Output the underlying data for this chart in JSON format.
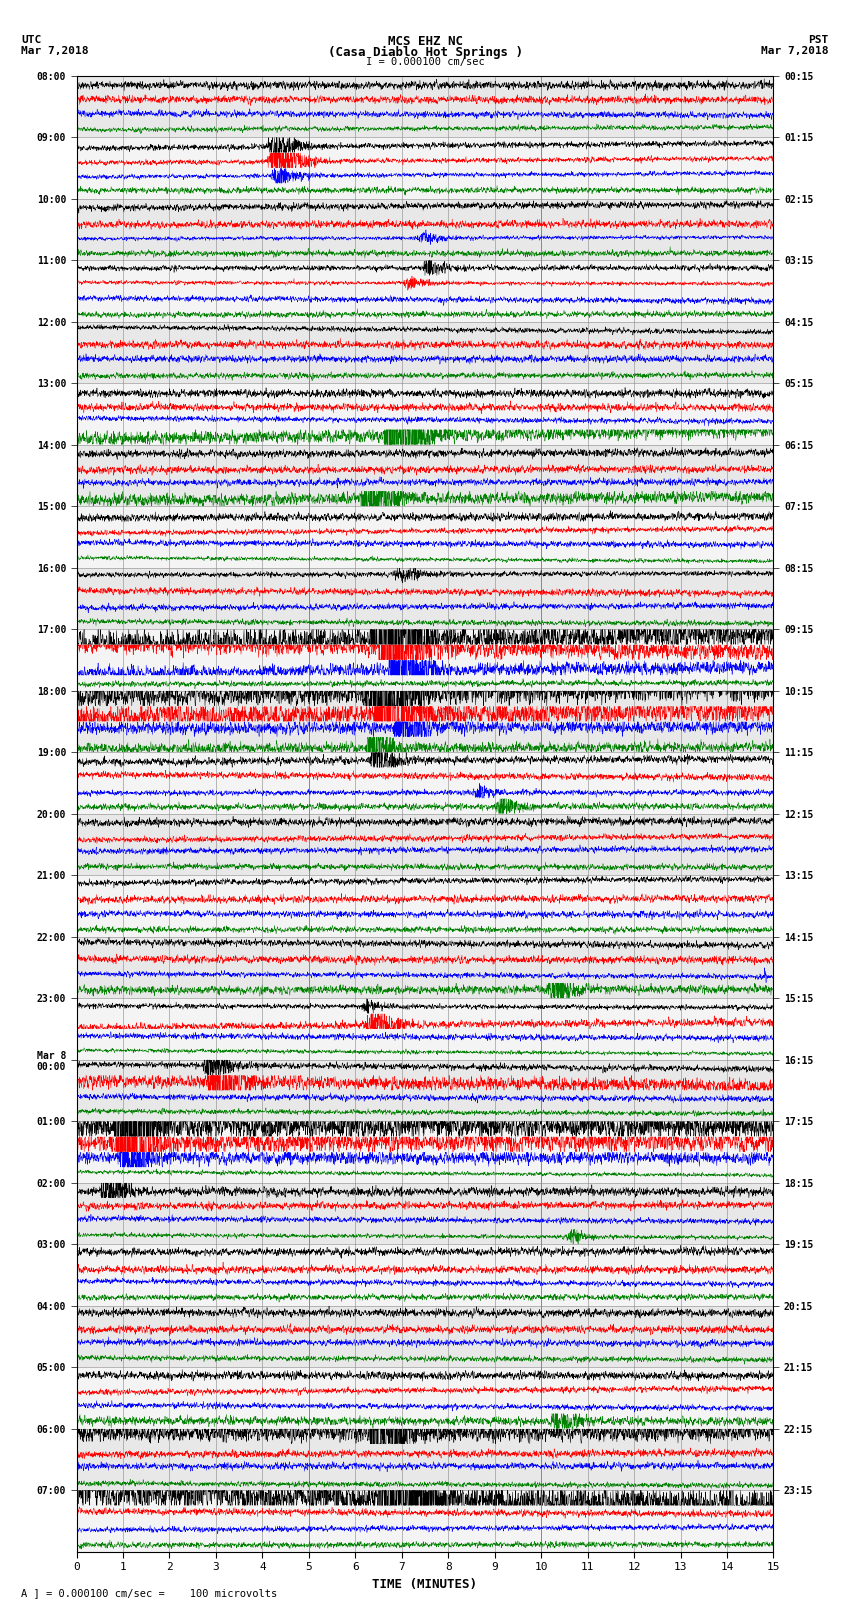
{
  "title_line1": "MCS EHZ NC",
  "title_line2": "(Casa Diablo Hot Springs )",
  "scale_label": "I = 0.000100 cm/sec",
  "footer_label": "A ] = 0.000100 cm/sec =    100 microvolts",
  "utc_label": "UTC",
  "utc_date": "Mar 7,2018",
  "pst_label": "PST",
  "pst_date": "Mar 7,2018",
  "xlabel": "TIME (MINUTES)",
  "colors": [
    "black",
    "red",
    "blue",
    "green"
  ],
  "bg_color": "#ffffff",
  "num_rows": 24,
  "minutes_per_row": 15,
  "grid_color": "#aaaaaa",
  "left_labels": [
    "08:00",
    "09:00",
    "10:00",
    "11:00",
    "12:00",
    "13:00",
    "14:00",
    "15:00",
    "16:00",
    "17:00",
    "18:00",
    "19:00",
    "20:00",
    "21:00",
    "22:00",
    "23:00",
    "Mar 8\n00:00",
    "01:00",
    "02:00",
    "03:00",
    "04:00",
    "05:00",
    "06:00",
    "07:00"
  ],
  "right_labels": [
    "00:15",
    "01:15",
    "02:15",
    "03:15",
    "04:15",
    "05:15",
    "06:15",
    "07:15",
    "08:15",
    "09:15",
    "10:15",
    "11:15",
    "12:15",
    "13:15",
    "14:15",
    "15:15",
    "16:15",
    "17:15",
    "18:15",
    "19:15",
    "20:15",
    "21:15",
    "22:15",
    "23:15"
  ],
  "events": {
    "1_0": [
      4.1,
      6,
      0.04
    ],
    "1_1": [
      4.1,
      12,
      0.035
    ],
    "1_2": [
      4.15,
      5,
      0.03
    ],
    "2_2": [
      7.3,
      3,
      0.02
    ],
    "3_0": [
      7.4,
      4,
      0.025
    ],
    "3_1": [
      7.0,
      3,
      0.02
    ],
    "5_3": [
      6.6,
      18,
      0.08
    ],
    "6_3": [
      6.1,
      10,
      0.06
    ],
    "8_0": [
      6.8,
      4,
      0.025
    ],
    "9_0": [
      6.3,
      35,
      0.15
    ],
    "9_1": [
      6.5,
      20,
      0.1
    ],
    "9_2": [
      6.7,
      12,
      0.07
    ],
    "10_0": [
      6.2,
      15,
      0.12
    ],
    "10_1": [
      6.4,
      20,
      0.12
    ],
    "10_2": [
      6.8,
      8,
      0.06
    ],
    "10_3": [
      6.2,
      8,
      0.05
    ],
    "11_0": [
      6.3,
      6,
      0.04
    ],
    "11_2": [
      8.5,
      3,
      0.025
    ],
    "11_3": [
      9.0,
      4,
      0.03
    ],
    "14_3": [
      10.1,
      5,
      0.04
    ],
    "14_2": [
      14.8,
      4,
      0.03
    ],
    "15_1": [
      6.2,
      6,
      0.05
    ],
    "15_0": [
      6.1,
      3,
      0.025
    ],
    "16_1": [
      2.8,
      10,
      0.07
    ],
    "16_0": [
      2.7,
      5,
      0.04
    ],
    "17_0": [
      0.8,
      20,
      0.12
    ],
    "17_1": [
      0.8,
      15,
      0.1
    ],
    "17_2": [
      0.9,
      8,
      0.06
    ],
    "18_0": [
      0.5,
      6,
      0.04
    ],
    "18_3": [
      10.5,
      3,
      0.025
    ],
    "21_3": [
      10.2,
      5,
      0.04
    ],
    "22_0": [
      6.3,
      12,
      0.08
    ],
    "23_0": [
      6.5,
      30,
      0.18
    ]
  }
}
